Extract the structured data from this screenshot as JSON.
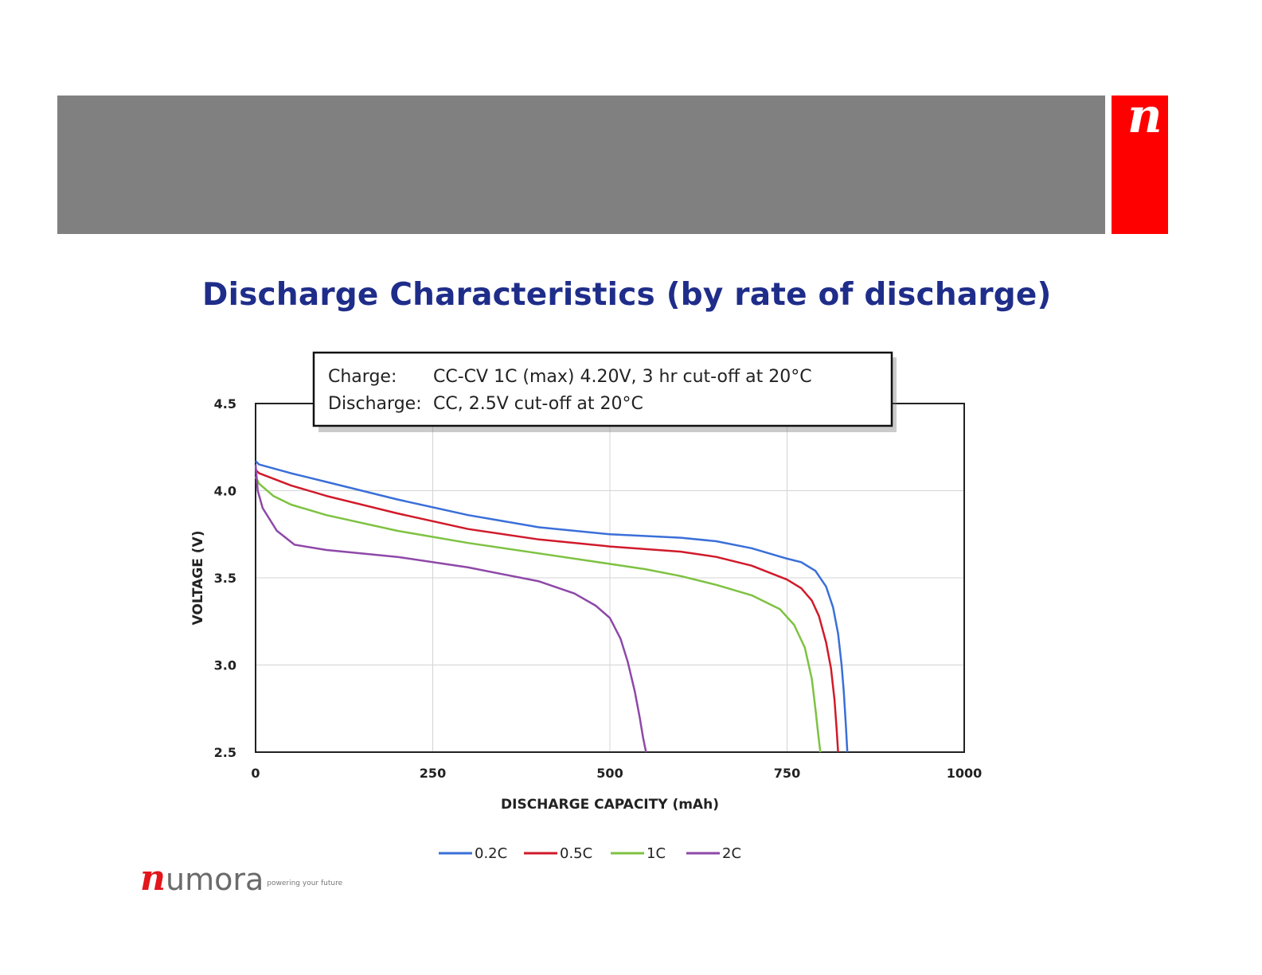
{
  "brand": {
    "glyph": "n",
    "footer_initial": "n",
    "footer_rest": "umora",
    "tagline": "powering your future"
  },
  "colors": {
    "header": "#808080",
    "brand_red": "#ff0000",
    "title": "#1f2d8a"
  },
  "chart_data": {
    "type": "line",
    "title": "Discharge Characteristics (by rate of discharge)",
    "xlabel": "DISCHARGE CAPACITY (mAh)",
    "ylabel": "VOLTAGE (V)",
    "xlim": [
      0,
      1000
    ],
    "ylim": [
      2.5,
      4.5
    ],
    "xticks": [
      "0",
      "250",
      "500",
      "750",
      "1000"
    ],
    "yticks": [
      "4.5",
      "4.0",
      "3.5",
      "3.0",
      "2.5"
    ],
    "grid": true,
    "legend_position": "bottom",
    "annotation": {
      "charge_label": "Charge:",
      "charge_text": "CC-CV 1C (max) 4.20V, 3 hr cut-off at 20°C",
      "discharge_label": "Discharge:",
      "discharge_text": "CC, 2.5V cut-off at 20°C"
    },
    "series": [
      {
        "name": "0.2C",
        "color": "#3a6fd8",
        "x": [
          0,
          5,
          50,
          100,
          200,
          300,
          400,
          500,
          600,
          650,
          700,
          750,
          770,
          790,
          805,
          815,
          822,
          827,
          830,
          833,
          835
        ],
        "y": [
          4.17,
          4.15,
          4.1,
          4.05,
          3.95,
          3.86,
          3.79,
          3.75,
          3.73,
          3.71,
          3.67,
          3.61,
          3.59,
          3.54,
          3.45,
          3.33,
          3.18,
          3.0,
          2.85,
          2.65,
          2.5
        ]
      },
      {
        "name": "0.5C",
        "color": "#d11a2a",
        "x": [
          0,
          5,
          50,
          100,
          200,
          300,
          400,
          500,
          600,
          650,
          700,
          750,
          770,
          785,
          795,
          805,
          812,
          817,
          820,
          822
        ],
        "y": [
          4.12,
          4.1,
          4.03,
          3.97,
          3.87,
          3.78,
          3.72,
          3.68,
          3.65,
          3.62,
          3.57,
          3.49,
          3.44,
          3.37,
          3.28,
          3.13,
          2.98,
          2.8,
          2.63,
          2.5
        ]
      },
      {
        "name": "1C",
        "color": "#7ec242",
        "x": [
          0,
          5,
          25,
          50,
          100,
          200,
          300,
          400,
          500,
          550,
          600,
          650,
          700,
          740,
          760,
          775,
          785,
          790,
          794,
          797
        ],
        "y": [
          4.08,
          4.04,
          3.97,
          3.92,
          3.86,
          3.77,
          3.7,
          3.64,
          3.58,
          3.55,
          3.51,
          3.46,
          3.4,
          3.32,
          3.23,
          3.1,
          2.92,
          2.75,
          2.6,
          2.5
        ]
      },
      {
        "name": "2C",
        "color": "#8e48a8",
        "x": [
          0,
          3,
          10,
          30,
          55,
          100,
          200,
          300,
          400,
          450,
          480,
          500,
          515,
          525,
          535,
          542,
          547,
          551
        ],
        "y": [
          4.15,
          4.0,
          3.9,
          3.77,
          3.69,
          3.66,
          3.62,
          3.56,
          3.48,
          3.41,
          3.34,
          3.27,
          3.15,
          3.02,
          2.85,
          2.7,
          2.58,
          2.5
        ]
      }
    ]
  }
}
